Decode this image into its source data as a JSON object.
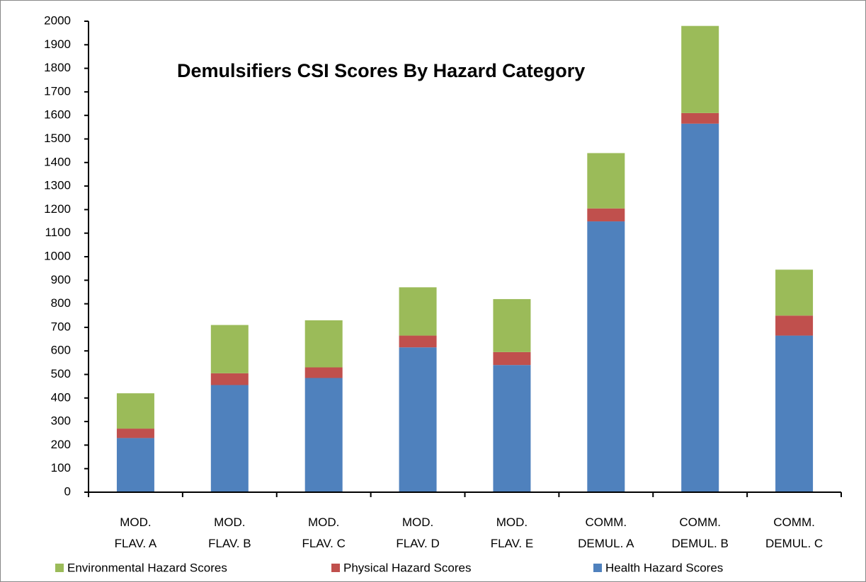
{
  "chart_data": {
    "type": "stacked_bar",
    "title": "Demulsifiers CSI Scores By Hazard Category",
    "categories": [
      "MOD. FLAV. A",
      "MOD. FLAV. B",
      "MOD. FLAV. C",
      "MOD. FLAV. D",
      "MOD. FLAV. E",
      "COMM. DEMUL. A",
      "COMM. DEMUL. B",
      "COMM. DEMUL. C"
    ],
    "series": [
      {
        "name": "Health Hazard Scores",
        "color": "#4f81bd",
        "values": [
          230,
          455,
          485,
          615,
          540,
          1150,
          1565,
          665
        ]
      },
      {
        "name": "Physical Hazard Scores",
        "color": "#c0504d",
        "values": [
          40,
          50,
          45,
          50,
          55,
          55,
          45,
          85
        ]
      },
      {
        "name": "Environmental Hazard Scores",
        "color": "#9bbb59",
        "values": [
          150,
          205,
          200,
          205,
          225,
          235,
          370,
          195
        ]
      }
    ],
    "ylim": [
      0,
      2000
    ],
    "yticks": [
      0,
      100,
      200,
      300,
      400,
      500,
      600,
      700,
      800,
      900,
      1000,
      1100,
      1200,
      1300,
      1400,
      1500,
      1600,
      1700,
      1800,
      1900,
      2000
    ],
    "legend": "bottom"
  }
}
